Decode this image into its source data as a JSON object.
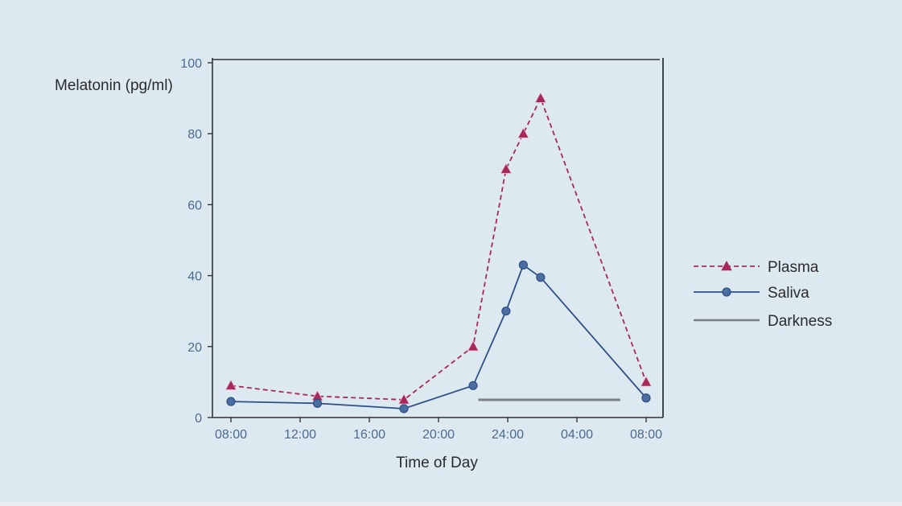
{
  "chart_data": {
    "type": "line",
    "ylabel": "Melatonin (pg/ml)",
    "xlabel": "Time of Day",
    "ylim": [
      0,
      100
    ],
    "yticks": [
      0,
      20,
      40,
      60,
      80,
      100
    ],
    "xlim": [
      8,
      32.5
    ],
    "xticks": [
      {
        "value": 8,
        "label": "08:00"
      },
      {
        "value": 12,
        "label": "12:00"
      },
      {
        "value": 16,
        "label": "16:00"
      },
      {
        "value": 20,
        "label": "20:00"
      },
      {
        "value": 24,
        "label": "24:00"
      },
      {
        "value": 28,
        "label": "04:00"
      },
      {
        "value": 32,
        "label": "08:00"
      }
    ],
    "grid": false,
    "legend": "right",
    "series": [
      {
        "name": "Plasma",
        "color": "#a8285a",
        "style": "dashed",
        "marker": "triangle",
        "points": [
          {
            "x": 8.0,
            "y": 9
          },
          {
            "x": 13.0,
            "y": 6
          },
          {
            "x": 18.0,
            "y": 5
          },
          {
            "x": 22.0,
            "y": 20
          },
          {
            "x": 23.9,
            "y": 70
          },
          {
            "x": 24.9,
            "y": 80
          },
          {
            "x": 25.9,
            "y": 90
          },
          {
            "x": 32.0,
            "y": 10
          }
        ]
      },
      {
        "name": "Saliva",
        "color": "#2e4f86",
        "style": "solid",
        "marker": "circle",
        "points": [
          {
            "x": 8.0,
            "y": 4.5
          },
          {
            "x": 13.0,
            "y": 4
          },
          {
            "x": 18.0,
            "y": 2.5
          },
          {
            "x": 22.0,
            "y": 9
          },
          {
            "x": 23.9,
            "y": 30
          },
          {
            "x": 24.9,
            "y": 43
          },
          {
            "x": 25.9,
            "y": 39.5
          },
          {
            "x": 32.0,
            "y": 5.5
          }
        ]
      }
    ],
    "darkness": {
      "name": "Darkness",
      "color": "#7a7f84",
      "x_start": 22.3,
      "x_end": 30.5,
      "y": 5
    }
  }
}
